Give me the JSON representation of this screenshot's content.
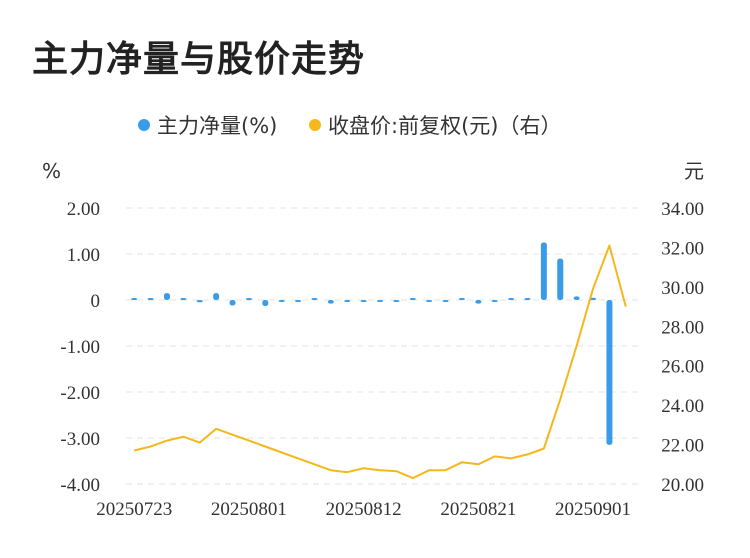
{
  "title": "主力净量与股价走势",
  "chart_data": {
    "type": "bar+line",
    "legend": {
      "items": [
        {
          "label": "主力净量(%)",
          "color": "#3a9ce8"
        },
        {
          "label": "收盘价:前复权(元)（右）",
          "color": "#f4b81c"
        }
      ]
    },
    "left_axis": {
      "unit": "%",
      "ticks": [
        "2.00",
        "1.00",
        "0",
        "-1.00",
        "-2.00",
        "-3.00",
        "-4.00"
      ],
      "range": [
        -4,
        2
      ]
    },
    "right_axis": {
      "unit": "元",
      "ticks": [
        "34.00",
        "32.00",
        "30.00",
        "28.00",
        "26.00",
        "24.00",
        "22.00",
        "20.00"
      ],
      "range": [
        20,
        34
      ]
    },
    "x_ticks": [
      "20250723",
      "20250801",
      "20250812",
      "20250821",
      "20250901"
    ],
    "categories": [
      "20250723",
      "20250724",
      "20250725",
      "20250728",
      "20250729",
      "20250730",
      "20250731",
      "20250801",
      "20250804",
      "20250805",
      "20250806",
      "20250807",
      "20250808",
      "20250811",
      "20250812",
      "20250813",
      "20250814",
      "20250815",
      "20250818",
      "20250819",
      "20250820",
      "20250821",
      "20250822",
      "20250825",
      "20250826",
      "20250827",
      "20250828",
      "20250829",
      "20250901",
      "20250902",
      "20250903"
    ],
    "series": [
      {
        "name": "主力净量(%)",
        "type": "bar",
        "values": [
          0,
          0.02,
          0.15,
          0.02,
          -0.05,
          0.15,
          -0.12,
          0.01,
          -0.13,
          -0.02,
          -0.03,
          0,
          -0.08,
          -0.01,
          -0.02,
          -0.02,
          -0.02,
          0,
          -0.01,
          -0.03,
          0,
          -0.08,
          -0.01,
          0,
          0.03,
          1.25,
          0.9,
          0.08,
          0.05,
          -3.15,
          null
        ]
      },
      {
        "name": "收盘价:前复权(元)（右）",
        "type": "line",
        "values": [
          21.7,
          21.9,
          22.2,
          22.4,
          22.1,
          22.8,
          22.5,
          22.2,
          21.9,
          21.6,
          21.3,
          21.0,
          20.7,
          20.6,
          20.8,
          20.7,
          20.65,
          20.3,
          20.7,
          20.7,
          21.1,
          21.0,
          21.4,
          21.3,
          21.5,
          21.8,
          24.3,
          27.0,
          29.9,
          32.1,
          29.0
        ]
      }
    ]
  }
}
